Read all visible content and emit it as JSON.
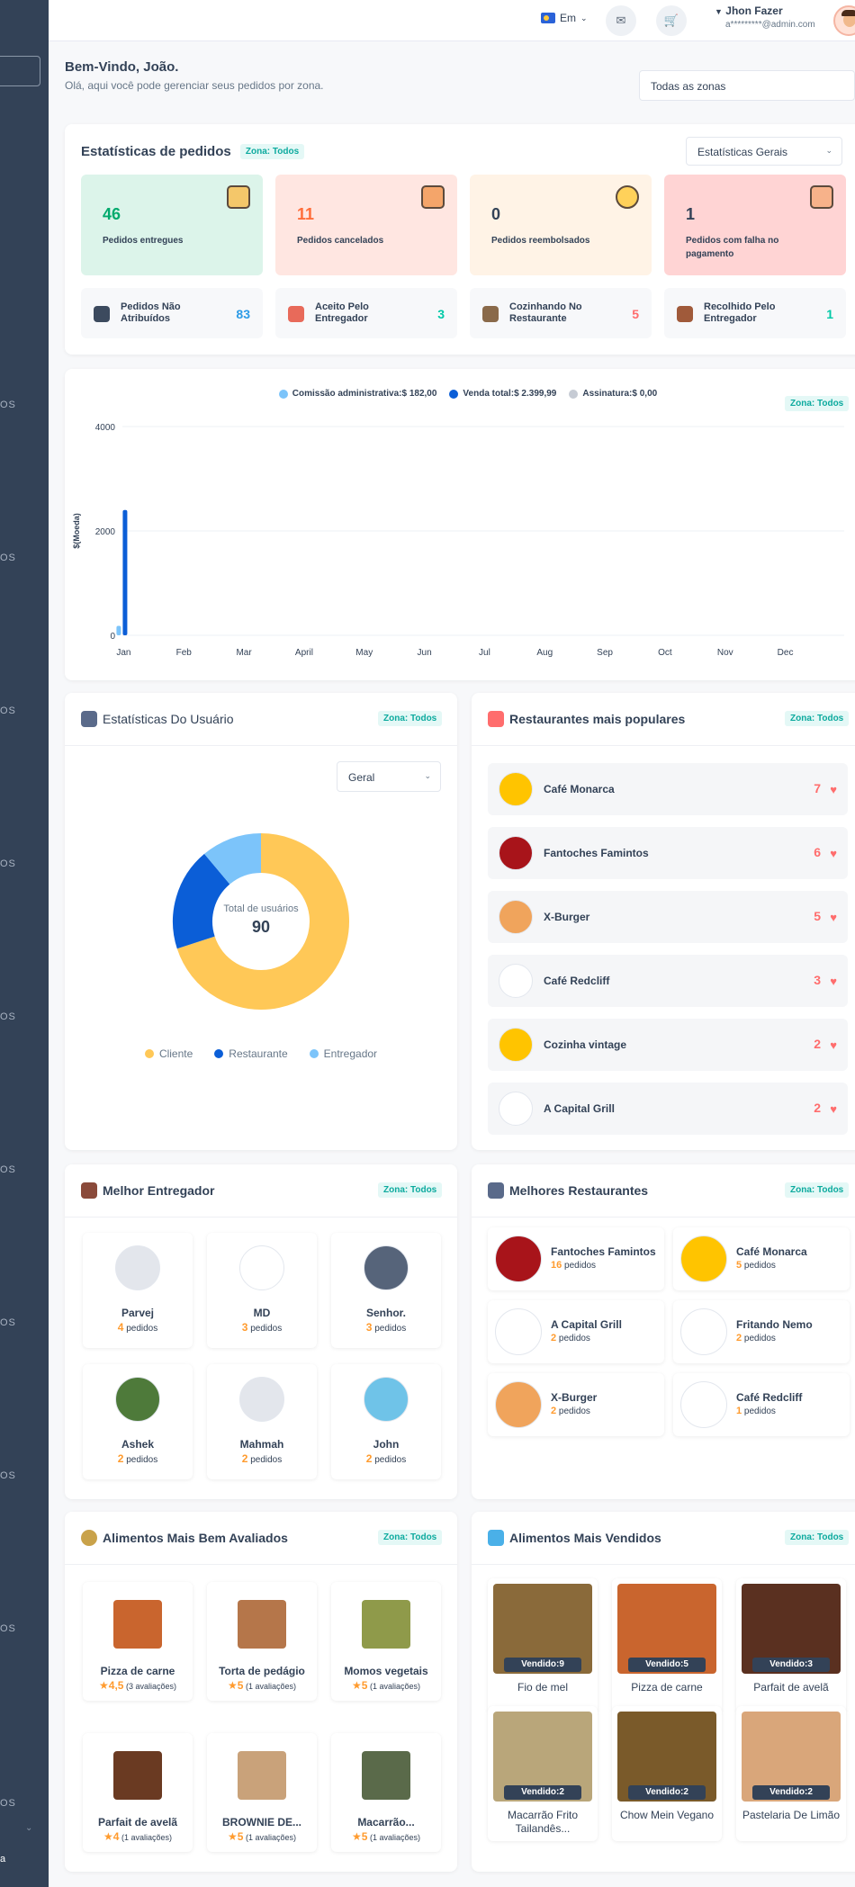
{
  "sidebar": {
    "items": [
      "OS",
      "OS",
      "OS",
      "OS",
      "OS",
      "OS",
      "OS",
      "OS",
      "OS",
      "OS",
      "OS"
    ],
    "footer": "a"
  },
  "header": {
    "language": "Em",
    "user_name": "Jhon Fazer",
    "user_email": "a*********@admin.com"
  },
  "welcome": {
    "title": "Bem-Vindo, João.",
    "subtitle": "Olá, aqui você pode gerenciar seus pedidos por zona.",
    "zone_select": "Todas as zonas"
  },
  "order_stats": {
    "title": "Estatísticas de pedidos",
    "zone": "Zona: Todos",
    "select": "Estatísticas Gerais",
    "big": [
      {
        "value": "46",
        "label": "Pedidos entregues",
        "color": "#00aa6d",
        "bg": "#dcf4ea"
      },
      {
        "value": "11",
        "label": "Pedidos cancelados",
        "color": "#ff6d3a",
        "bg": "#ffe6e1"
      },
      {
        "value": "0",
        "label": "Pedidos reembolsados",
        "color": "#334257",
        "bg": "#fff3e6"
      },
      {
        "value": "1",
        "label": "Pedidos com falha no pagamento",
        "color": "#334257",
        "bg": "#ffd4d4"
      }
    ],
    "small": [
      {
        "label": "Pedidos Não Atribuídos",
        "value": "83",
        "color": "#2d9be6"
      },
      {
        "label": "Aceito Pelo Entregador",
        "value": "3",
        "color": "#00c9a7"
      },
      {
        "label": "Cozinhando No Restaurante",
        "value": "5",
        "color": "#ff6d6d"
      },
      {
        "label": "Recolhido Pelo Entregador",
        "value": "1",
        "color": "#00c9a7"
      }
    ]
  },
  "earnings_chart": {
    "zone": "Zona: Todos",
    "legend": [
      {
        "label": "Comissão administrativa:$ 182,00",
        "color": "#7cc4fa"
      },
      {
        "label": "Venda total:$ 2.399,99",
        "color": "#0b5ed7"
      },
      {
        "label": "Assinatura:$ 0,00",
        "color": "#c6cbd4"
      }
    ]
  },
  "chart_data": {
    "type": "bar",
    "title": "",
    "xlabel": "",
    "ylabel": "$(Moeda)",
    "categories": [
      "Jan",
      "Feb",
      "Mar",
      "April",
      "May",
      "Jun",
      "Jul",
      "Aug",
      "Sep",
      "Oct",
      "Nov",
      "Dec"
    ],
    "series": [
      {
        "name": "Comissão administrativa",
        "values": [
          182,
          0,
          0,
          0,
          0,
          0,
          0,
          0,
          0,
          0,
          0,
          0
        ]
      },
      {
        "name": "Venda total",
        "values": [
          2399.99,
          0,
          0,
          0,
          0,
          0,
          0,
          0,
          0,
          0,
          0,
          0
        ]
      },
      {
        "name": "Assinatura",
        "values": [
          0,
          0,
          0,
          0,
          0,
          0,
          0,
          0,
          0,
          0,
          0,
          0
        ]
      }
    ],
    "yticks": [
      "0",
      "2000",
      "4000"
    ],
    "ylim": [
      0,
      4000
    ],
    "grid": true,
    "legend": "top"
  },
  "user_stats": {
    "title": "Estatísticas Do Usuário",
    "zone": "Zona: Todos",
    "select": "Geral",
    "center_label": "Total de usuários",
    "center_value": "90",
    "segments": [
      {
        "label": "Cliente",
        "value": 63,
        "color": "#ffc857"
      },
      {
        "label": "Restaurante",
        "value": 17,
        "color": "#0b5ed7"
      },
      {
        "label": "Entregador",
        "value": 10,
        "color": "#7cc4fa"
      }
    ]
  },
  "popular_restaurants": {
    "title": "Restaurantes mais populares",
    "zone": "Zona: Todos",
    "items": [
      {
        "name": "Café Monarca",
        "count": "7",
        "color": "#ffc400"
      },
      {
        "name": "Fantoches Famintos",
        "count": "6",
        "color": "#a8141a"
      },
      {
        "name": "X-Burger",
        "count": "5",
        "color": "#f0a45c"
      },
      {
        "name": "Café Redcliff",
        "count": "3",
        "color": "#ffffff"
      },
      {
        "name": "Cozinha vintage",
        "count": "2",
        "color": "#ffc400"
      },
      {
        "name": "A Capital Grill",
        "count": "2",
        "color": "#ffffff"
      }
    ]
  },
  "best_deliveryman": {
    "title": "Melhor Entregador",
    "zone": "Zona: Todos",
    "suffix": "pedidos",
    "items": [
      {
        "name": "Parvej",
        "count": "4",
        "color": "#e3e6ec"
      },
      {
        "name": "MD",
        "count": "3",
        "color": "#ffffff"
      },
      {
        "name": "Senhor.",
        "count": "3",
        "color": "#56647a"
      },
      {
        "name": "Ashek",
        "count": "2",
        "color": "#4e7a3a"
      },
      {
        "name": "Mahmah",
        "count": "2",
        "color": "#e3e6ec"
      },
      {
        "name": "John",
        "count": "2",
        "color": "#6fc3e8"
      }
    ]
  },
  "best_restaurants": {
    "title": "Melhores Restaurantes",
    "zone": "Zona: Todos",
    "suffix": "pedidos",
    "items": [
      {
        "name": "Fantoches Famintos",
        "count": "16",
        "color": "#a8141a"
      },
      {
        "name": "Café Monarca",
        "count": "5",
        "color": "#ffc400"
      },
      {
        "name": "A Capital Grill",
        "count": "2",
        "color": "#ffffff"
      },
      {
        "name": "Fritando Nemo",
        "count": "2",
        "color": "#ffffff"
      },
      {
        "name": "X-Burger",
        "count": "2",
        "color": "#f0a45c"
      },
      {
        "name": "Café Redcliff",
        "count": "1",
        "color": "#ffffff"
      }
    ]
  },
  "top_rated_foods": {
    "title": "Alimentos Mais Bem Avaliados",
    "zone": "Zona: Todos",
    "items": [
      {
        "name": "Pizza de carne",
        "rating": "4,5",
        "reviews": "(3 avaliações)",
        "color": "#c9652e"
      },
      {
        "name": "Torta de pedágio",
        "rating": "5",
        "reviews": "(1 avaliações)",
        "color": "#b5764a"
      },
      {
        "name": "Momos vegetais",
        "rating": "5",
        "reviews": "(1 avaliações)",
        "color": "#8f9a4a"
      },
      {
        "name": "Parfait de avelã",
        "rating": "4",
        "reviews": "(1 avaliações)",
        "color": "#6a3a22"
      },
      {
        "name": "BROWNIE DE...",
        "rating": "5",
        "reviews": "(1 avaliações)",
        "color": "#c9a27a"
      },
      {
        "name": "Macarrão...",
        "rating": "5",
        "reviews": "(1 avaliações)",
        "color": "#5a6a4a"
      }
    ]
  },
  "top_selling_foods": {
    "title": "Alimentos Mais Vendidos",
    "zone": "Zona: Todos",
    "items": [
      {
        "name": "Fio de mel",
        "sold": "Vendido:9",
        "color": "#8a6a3a"
      },
      {
        "name": "Pizza de carne",
        "sold": "Vendido:5",
        "color": "#c9652e"
      },
      {
        "name": "Parfait de avelã",
        "sold": "Vendido:3",
        "color": "#5a3020"
      },
      {
        "name": "Macarrão Frito Tailandês...",
        "sold": "Vendido:2",
        "color": "#b9a67a"
      },
      {
        "name": "Chow Mein Vegano",
        "sold": "Vendido:2",
        "color": "#7a5a2a"
      },
      {
        "name": "Pastelaria De Limão",
        "sold": "Vendido:2",
        "color": "#d9a67a"
      }
    ]
  }
}
